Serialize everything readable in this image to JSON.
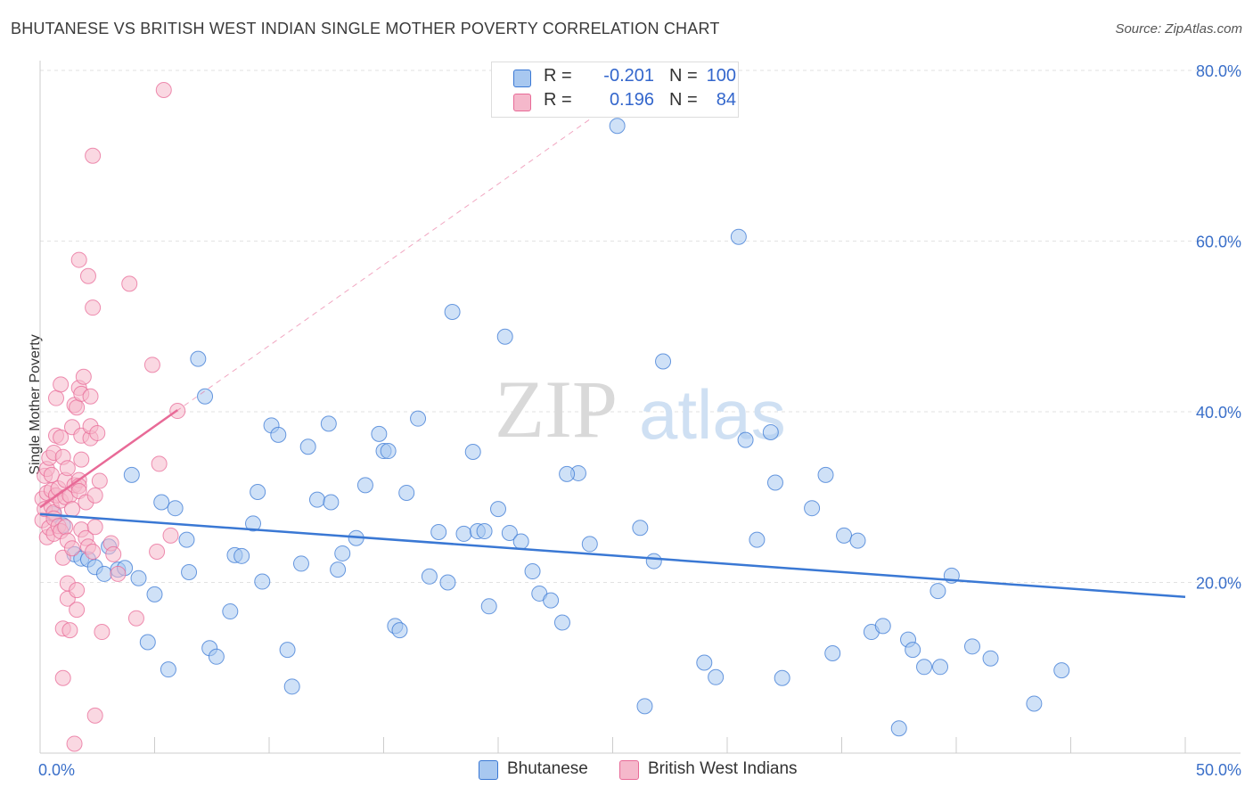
{
  "title": "BHUTANESE VS BRITISH WEST INDIAN SINGLE MOTHER POVERTY CORRELATION CHART",
  "source": "Source: ZipAtlas.com",
  "watermark": {
    "zip": "ZIP",
    "atlas": "atlas"
  },
  "stats": [
    {
      "r_label": "R =",
      "r_value": "-0.201",
      "n_label": "N =",
      "n_value": "100",
      "color": "#a8c8f0"
    },
    {
      "r_label": "R =",
      "r_value": "0.196",
      "n_label": "N =",
      "n_value": "84",
      "color": "#f5b8cb"
    }
  ],
  "legend": [
    {
      "label": "Bhutanese",
      "color": "#a8c8f0"
    },
    {
      "label": "British West Indians",
      "color": "#f5b8cb"
    }
  ],
  "chart_data": {
    "type": "scatter",
    "xlabel": "",
    "ylabel": "Single Mother Poverty",
    "xlim": [
      0,
      50
    ],
    "ylim": [
      0,
      80
    ],
    "x_tick_labels": [
      {
        "value": 0,
        "label": "0.0%"
      },
      {
        "value": 50,
        "label": "50.0%"
      }
    ],
    "y_tick_labels": [
      {
        "value": 20,
        "label": "20.0%"
      },
      {
        "value": 40,
        "label": "40.0%"
      },
      {
        "value": 60,
        "label": "60.0%"
      },
      {
        "value": 80,
        "label": "80.0%"
      }
    ],
    "grid": "horizontal dashed",
    "legend_position": "bottom-center",
    "series": [
      {
        "name": "Bhutanese",
        "color": "#3a78d4",
        "fill": "#a8c8f0",
        "trend": {
          "x": [
            0,
            50
          ],
          "y": [
            28.0,
            18.3
          ]
        },
        "points": [
          [
            0.6,
            28.0
          ],
          [
            1.0,
            26.7
          ],
          [
            1.5,
            23.3
          ],
          [
            1.8,
            22.8
          ],
          [
            2.1,
            22.7
          ],
          [
            2.4,
            21.8
          ],
          [
            2.8,
            21.0
          ],
          [
            3.0,
            24.2
          ],
          [
            3.4,
            21.5
          ],
          [
            3.7,
            21.7
          ],
          [
            4.0,
            32.6
          ],
          [
            4.3,
            20.5
          ],
          [
            4.7,
            13.0
          ],
          [
            5.0,
            18.6
          ],
          [
            5.3,
            29.4
          ],
          [
            5.6,
            9.8
          ],
          [
            5.9,
            28.7
          ],
          [
            6.4,
            25.0
          ],
          [
            6.5,
            21.2
          ],
          [
            6.9,
            46.2
          ],
          [
            7.2,
            41.8
          ],
          [
            7.4,
            12.3
          ],
          [
            7.7,
            11.3
          ],
          [
            8.3,
            16.6
          ],
          [
            8.5,
            23.2
          ],
          [
            8.8,
            23.1
          ],
          [
            9.3,
            26.9
          ],
          [
            9.5,
            30.6
          ],
          [
            9.7,
            20.1
          ],
          [
            10.1,
            38.4
          ],
          [
            10.4,
            37.3
          ],
          [
            10.8,
            12.1
          ],
          [
            11.0,
            7.8
          ],
          [
            11.4,
            22.2
          ],
          [
            11.7,
            35.9
          ],
          [
            12.1,
            29.7
          ],
          [
            12.6,
            38.6
          ],
          [
            12.7,
            29.4
          ],
          [
            13.0,
            21.5
          ],
          [
            13.2,
            23.4
          ],
          [
            13.8,
            25.2
          ],
          [
            14.2,
            31.4
          ],
          [
            14.8,
            37.4
          ],
          [
            15.0,
            35.4
          ],
          [
            15.5,
            14.9
          ],
          [
            15.7,
            14.4
          ],
          [
            16.0,
            30.5
          ],
          [
            16.5,
            39.2
          ],
          [
            17.0,
            20.7
          ],
          [
            17.4,
            25.9
          ],
          [
            17.8,
            20.0
          ],
          [
            18.0,
            51.7
          ],
          [
            18.5,
            25.7
          ],
          [
            18.9,
            35.3
          ],
          [
            19.1,
            26.0
          ],
          [
            19.4,
            26.0
          ],
          [
            19.6,
            17.2
          ],
          [
            20.0,
            28.6
          ],
          [
            20.3,
            48.8
          ],
          [
            20.5,
            25.8
          ],
          [
            21.0,
            24.8
          ],
          [
            21.5,
            21.3
          ],
          [
            21.8,
            18.7
          ],
          [
            22.3,
            17.9
          ],
          [
            22.8,
            15.3
          ],
          [
            23.5,
            32.8
          ],
          [
            24.0,
            24.5
          ],
          [
            25.2,
            73.5
          ],
          [
            26.2,
            26.4
          ],
          [
            26.4,
            5.5
          ],
          [
            26.8,
            22.5
          ],
          [
            27.2,
            45.9
          ],
          [
            29.0,
            10.6
          ],
          [
            29.5,
            8.9
          ],
          [
            30.5,
            60.5
          ],
          [
            30.8,
            36.7
          ],
          [
            31.3,
            25.0
          ],
          [
            31.9,
            37.6
          ],
          [
            32.1,
            31.7
          ],
          [
            32.4,
            8.8
          ],
          [
            33.7,
            28.7
          ],
          [
            34.3,
            32.6
          ],
          [
            34.6,
            11.7
          ],
          [
            35.1,
            25.5
          ],
          [
            35.7,
            24.9
          ],
          [
            36.3,
            14.2
          ],
          [
            36.8,
            14.9
          ],
          [
            37.5,
            2.9
          ],
          [
            37.9,
            13.3
          ],
          [
            38.1,
            12.1
          ],
          [
            38.6,
            10.1
          ],
          [
            39.2,
            19.0
          ],
          [
            39.3,
            10.1
          ],
          [
            39.8,
            20.8
          ],
          [
            40.7,
            12.5
          ],
          [
            41.5,
            11.1
          ],
          [
            43.4,
            5.8
          ],
          [
            44.6,
            9.7
          ],
          [
            15.2,
            35.4
          ],
          [
            23.0,
            32.7
          ]
        ]
      },
      {
        "name": "British West Indians",
        "color": "#e86a97",
        "fill": "#f5b8cb",
        "trend": {
          "x": [
            0,
            6.0
          ],
          "y": [
            28.8,
            40.2
          ]
        },
        "trend_extended": {
          "x": [
            0,
            26.5
          ],
          "y": [
            28.8,
            79.0
          ]
        },
        "points": [
          [
            0.1,
            27.3
          ],
          [
            0.1,
            29.8
          ],
          [
            0.2,
            32.5
          ],
          [
            0.2,
            28.6
          ],
          [
            0.3,
            25.3
          ],
          [
            0.3,
            33.3
          ],
          [
            0.3,
            30.5
          ],
          [
            0.4,
            34.6
          ],
          [
            0.4,
            26.4
          ],
          [
            0.5,
            28.9
          ],
          [
            0.5,
            30.8
          ],
          [
            0.5,
            32.6
          ],
          [
            0.6,
            25.7
          ],
          [
            0.6,
            35.2
          ],
          [
            0.6,
            28.2
          ],
          [
            0.6,
            27.5
          ],
          [
            0.7,
            41.6
          ],
          [
            0.7,
            37.2
          ],
          [
            0.7,
            30.2
          ],
          [
            0.8,
            26.6
          ],
          [
            0.8,
            31.0
          ],
          [
            0.9,
            43.2
          ],
          [
            0.9,
            26.0
          ],
          [
            0.9,
            29.6
          ],
          [
            0.9,
            37.0
          ],
          [
            1.0,
            34.7
          ],
          [
            1.0,
            22.9
          ],
          [
            1.0,
            8.8
          ],
          [
            1.0,
            14.6
          ],
          [
            1.1,
            30.0
          ],
          [
            1.1,
            32.0
          ],
          [
            1.1,
            26.5
          ],
          [
            1.2,
            19.9
          ],
          [
            1.2,
            18.1
          ],
          [
            1.2,
            24.9
          ],
          [
            1.2,
            33.4
          ],
          [
            1.3,
            14.4
          ],
          [
            1.3,
            30.2
          ],
          [
            1.4,
            38.2
          ],
          [
            1.4,
            28.6
          ],
          [
            1.4,
            24.0
          ],
          [
            1.5,
            1.1
          ],
          [
            1.5,
            31.4
          ],
          [
            1.5,
            40.8
          ],
          [
            1.6,
            19.1
          ],
          [
            1.6,
            16.8
          ],
          [
            1.6,
            40.5
          ],
          [
            1.7,
            42.8
          ],
          [
            1.7,
            32.0
          ],
          [
            1.7,
            31.3
          ],
          [
            1.7,
            57.8
          ],
          [
            1.7,
            30.7
          ],
          [
            1.8,
            37.2
          ],
          [
            1.8,
            42.1
          ],
          [
            1.8,
            26.2
          ],
          [
            1.8,
            34.4
          ],
          [
            1.9,
            44.1
          ],
          [
            2.0,
            29.4
          ],
          [
            2.0,
            25.2
          ],
          [
            2.1,
            55.9
          ],
          [
            2.1,
            24.2
          ],
          [
            2.2,
            36.9
          ],
          [
            2.2,
            41.8
          ],
          [
            2.2,
            38.3
          ],
          [
            2.3,
            52.2
          ],
          [
            2.3,
            70.0
          ],
          [
            2.3,
            23.6
          ],
          [
            2.4,
            26.5
          ],
          [
            2.4,
            4.4
          ],
          [
            2.4,
            30.2
          ],
          [
            2.5,
            37.5
          ],
          [
            2.6,
            31.9
          ],
          [
            2.7,
            14.2
          ],
          [
            3.1,
            24.6
          ],
          [
            3.2,
            23.3
          ],
          [
            3.4,
            21.0
          ],
          [
            3.9,
            55.0
          ],
          [
            4.2,
            15.8
          ],
          [
            4.9,
            45.5
          ],
          [
            5.1,
            23.6
          ],
          [
            5.2,
            33.9
          ],
          [
            5.4,
            77.7
          ],
          [
            5.7,
            25.5
          ],
          [
            6.0,
            40.1
          ]
        ]
      }
    ]
  }
}
